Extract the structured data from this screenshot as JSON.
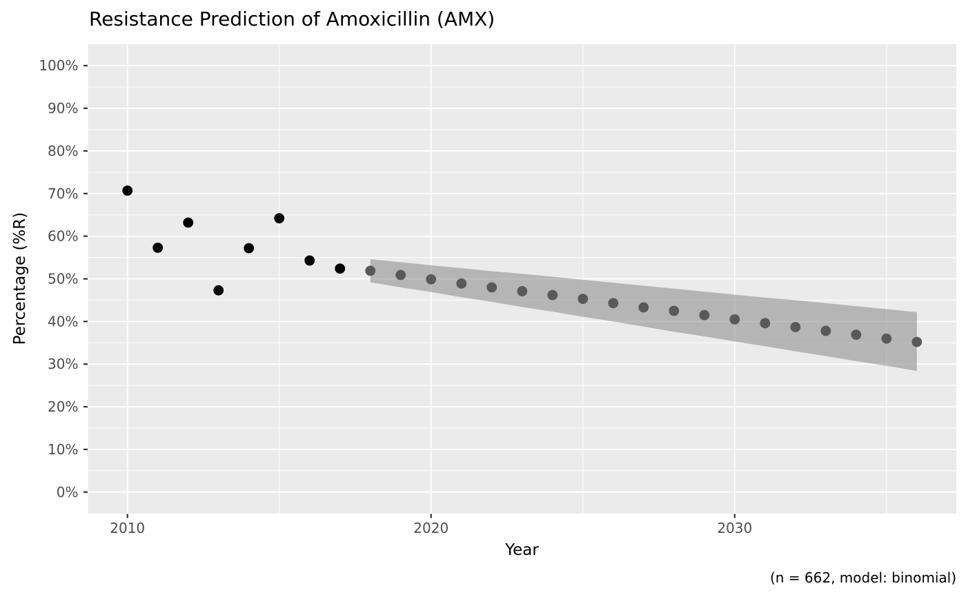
{
  "chart": {
    "title": "Resistance Prediction of Amoxicillin (AMX)",
    "xlabel": "Year",
    "ylabel": "Percentage (%R)",
    "caption": "(n = 662, model: binomial)"
  },
  "colors": {
    "panel_background": "#EBEBEB",
    "gridline": "#FFFFFF",
    "tick_mark": "#333333",
    "tick_text": "#4D4D4D",
    "observed_point": "#000000",
    "predicted_point": "#595959",
    "ribbon": "rgba(127,127,127,0.5)",
    "text": "#000000"
  },
  "chart_data": {
    "type": "scatter",
    "title": "Resistance Prediction of Amoxicillin (AMX)",
    "xlabel": "Year",
    "ylabel": "Percentage (%R)",
    "caption": "(n = 662, model: binomial)",
    "xlim": [
      2008.7,
      2037.3
    ],
    "ylim": [
      -5.05,
      105.05
    ],
    "grid": true,
    "legend": "none",
    "x_major_breaks": [
      2010,
      2020,
      2030
    ],
    "x_tick_labels": [
      "2010",
      "2020",
      "2030"
    ],
    "x_minor_breaks": [
      2015,
      2025,
      2035
    ],
    "y_major_breaks": [
      0,
      10,
      20,
      30,
      40,
      50,
      60,
      70,
      80,
      90,
      100
    ],
    "y_tick_labels": [
      "0%",
      "10%",
      "20%",
      "30%",
      "40%",
      "50%",
      "60%",
      "70%",
      "80%",
      "90%",
      "100%"
    ],
    "y_minor_breaks": [
      5,
      15,
      25,
      35,
      45,
      55,
      65,
      75,
      85,
      95
    ],
    "series": [
      {
        "name": "observed",
        "type": "points",
        "x": [
          2010,
          2011,
          2012,
          2013,
          2014,
          2015,
          2016,
          2017
        ],
        "y": [
          70.7,
          57.3,
          63.2,
          47.3,
          57.2,
          64.2,
          54.3,
          52.4
        ]
      },
      {
        "name": "predicted",
        "type": "points",
        "x": [
          2018,
          2019,
          2020,
          2021,
          2022,
          2023,
          2024,
          2025,
          2026,
          2027,
          2028,
          2029,
          2030,
          2031,
          2032,
          2033,
          2034,
          2035,
          2036
        ],
        "y": [
          51.9,
          50.9,
          49.9,
          48.9,
          48.0,
          47.1,
          46.2,
          45.3,
          44.3,
          43.3,
          42.5,
          41.5,
          40.5,
          39.6,
          38.7,
          37.8,
          36.9,
          36.0,
          35.2
        ]
      },
      {
        "name": "confidence-interval",
        "type": "ribbon",
        "x": [
          2018,
          2019,
          2020,
          2021,
          2022,
          2023,
          2024,
          2025,
          2026,
          2027,
          2028,
          2029,
          2030,
          2031,
          2032,
          2033,
          2034,
          2035,
          2036
        ],
        "upper": [
          54.6,
          53.9,
          53.2,
          52.5,
          51.8,
          51.2,
          50.5,
          49.8,
          49.1,
          48.4,
          47.7,
          47.0,
          46.3,
          45.6,
          45.0,
          44.3,
          43.6,
          42.9,
          42.2
        ],
        "lower": [
          49.2,
          48.0,
          46.9,
          45.7,
          44.6,
          43.4,
          42.3,
          41.1,
          40.0,
          38.8,
          37.6,
          36.5,
          35.3,
          34.2,
          33.0,
          31.9,
          30.7,
          29.6,
          28.4
        ]
      }
    ]
  }
}
